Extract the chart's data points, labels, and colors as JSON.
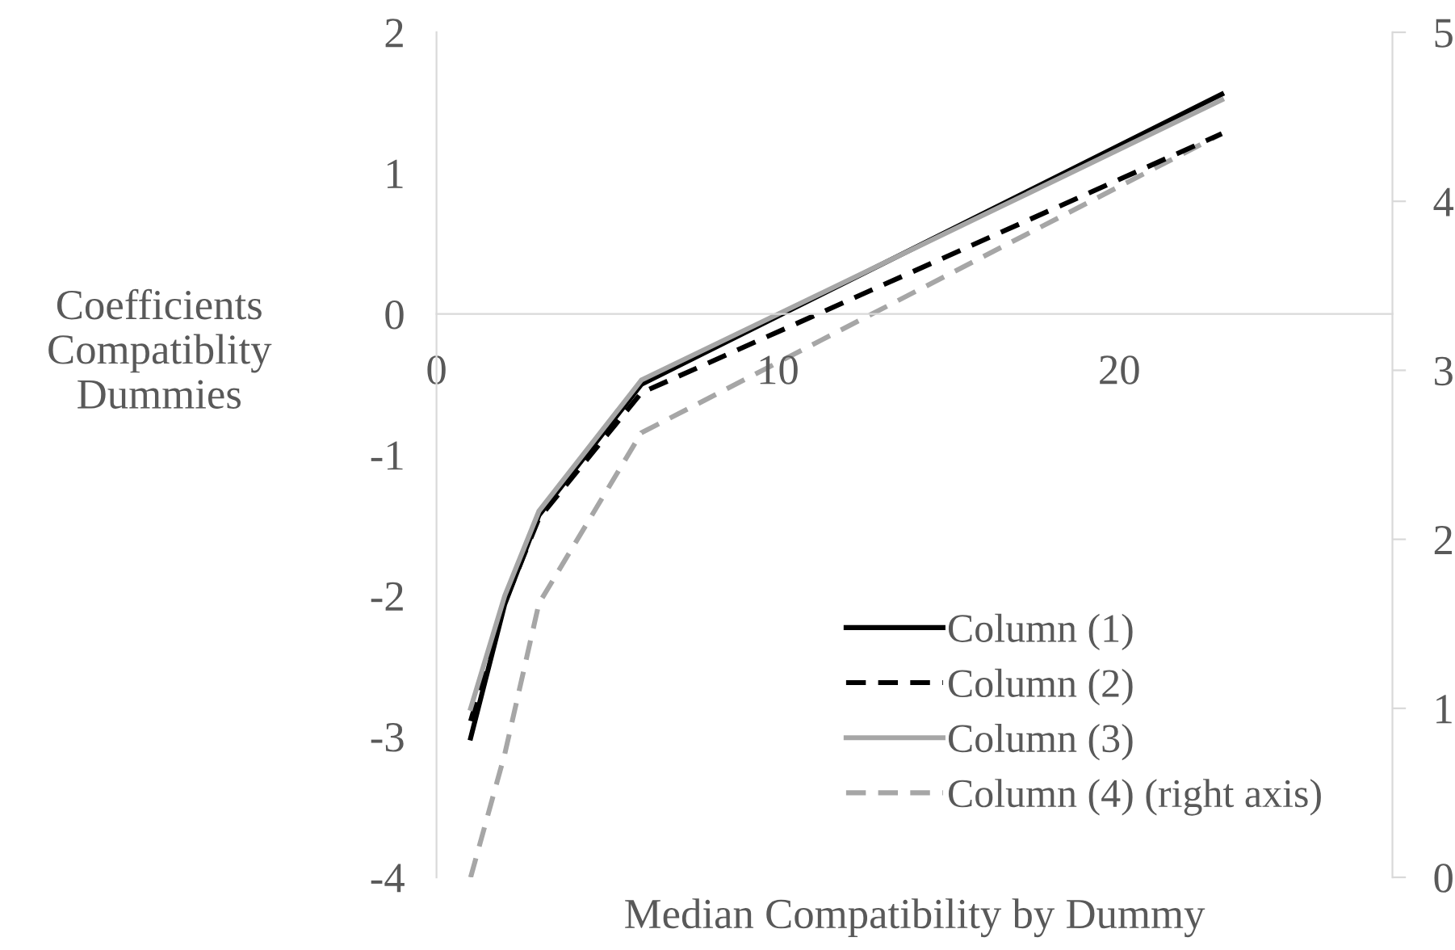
{
  "chart_data": {
    "type": "line",
    "xlabel": "Median Compatibility by Dummy",
    "ylabel": "Coefficients\nCompatiblity\nDummies",
    "xlim": [
      0,
      28
    ],
    "xticks": [
      0,
      10,
      20
    ],
    "ylim": [
      -4,
      2
    ],
    "yticks": [
      -4,
      -3,
      -2,
      -1,
      0,
      1,
      2
    ],
    "y2lim": [
      0,
      5
    ],
    "y2ticks": [
      0,
      1,
      2,
      3,
      4,
      5
    ],
    "grid": false,
    "legend": "bottom right",
    "marker": "none",
    "series": [
      {
        "name": "Column (1)",
        "color": "#000000",
        "line_style": "solid",
        "x": [
          1,
          2,
          3,
          6,
          23
        ],
        "values": [
          -3.01,
          -2.06,
          -1.43,
          -0.5,
          1.56
        ]
      },
      {
        "name": "Column (2)",
        "color": "#000000",
        "line_style": "dashed",
        "x": [
          1,
          2,
          3,
          6,
          23
        ],
        "values": [
          -2.89,
          -2.05,
          -1.45,
          -0.56,
          1.28
        ]
      },
      {
        "name": "Column (3)",
        "color": "#a6a6a6",
        "line_style": "solid",
        "x": [
          1,
          2,
          3,
          6,
          23
        ],
        "values": [
          -2.8,
          -2.0,
          -1.4,
          -0.47,
          1.52
        ]
      },
      {
        "name": "Column (4) (right axis)",
        "color": "#a6a6a6",
        "line_style": "dashed",
        "axis": "y2",
        "x": [
          1,
          2,
          3,
          6,
          23
        ],
        "values": [
          0.0,
          0.73,
          1.62,
          2.63,
          4.4
        ]
      }
    ]
  }
}
